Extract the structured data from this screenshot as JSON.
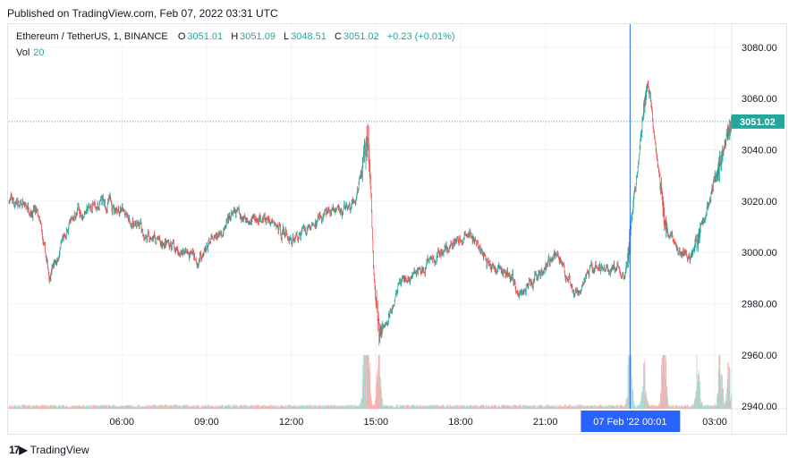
{
  "header": {
    "published": "Published on TradingView.com, Feb 07, 2022 03:31 UTC"
  },
  "legend": {
    "symbol": "Ethereum / TetherUS, 1, BINANCE",
    "open_label": "O",
    "open": "3051.01",
    "high_label": "H",
    "high": "3051.09",
    "low_label": "L",
    "low": "3048.51",
    "close_label": "C",
    "close": "3051.02",
    "change": "+0.23 (+0.01%)",
    "vol_label": "Vol",
    "vol_value": "20"
  },
  "footer": {
    "brand": "TradingView"
  },
  "colors": {
    "up": "#26a69a",
    "down": "#ef5350",
    "crosshair": "#2962ff",
    "price_tag": "#26a69a"
  },
  "chart_data": {
    "type": "candlestick",
    "x_tick_labels": [
      "06:00",
      "09:00",
      "12:00",
      "15:00",
      "18:00",
      "21:00",
      "03:00"
    ],
    "x_tick_hours": [
      6,
      9,
      12,
      15,
      18,
      21,
      27
    ],
    "x_range_hours": [
      2.0,
      27.6
    ],
    "y_ticks": [
      "3080.00",
      "3060.00",
      "3040.00",
      "3020.00",
      "3000.00",
      "2980.00",
      "2960.00",
      "2940.00"
    ],
    "y_tick_values": [
      3080,
      3060,
      3040,
      3020,
      3000,
      2980,
      2960,
      2940
    ],
    "ylim": [
      2939,
      3089
    ],
    "last_price": 3051.02,
    "last_price_label": "3051.02",
    "crosshair_hour": 24.0,
    "crosshair_label": "07 Feb '22   00:01",
    "price_path": [
      [
        2.0,
        3020
      ],
      [
        3.0,
        3015
      ],
      [
        3.4,
        2990
      ],
      [
        4.3,
        3015
      ],
      [
        5.5,
        3020
      ],
      [
        7.0,
        3005
      ],
      [
        8.7,
        2998
      ],
      [
        10.0,
        3015
      ],
      [
        11.2,
        3012
      ],
      [
        12.0,
        3005
      ],
      [
        13.0,
        3014
      ],
      [
        14.2,
        3018
      ],
      [
        14.7,
        3045
      ],
      [
        14.9,
        2990
      ],
      [
        15.1,
        2965
      ],
      [
        15.8,
        2988
      ],
      [
        16.2,
        2990
      ],
      [
        17.5,
        3002
      ],
      [
        18.3,
        3007
      ],
      [
        19.0,
        2995
      ],
      [
        19.8,
        2990
      ],
      [
        20.0,
        2983
      ],
      [
        21.4,
        3000
      ],
      [
        22.0,
        2982
      ],
      [
        22.7,
        2995
      ],
      [
        23.5,
        2994
      ],
      [
        23.8,
        2988
      ],
      [
        24.3,
        3040
      ],
      [
        24.6,
        3070
      ],
      [
        25.2,
        3010
      ],
      [
        25.7,
        3000
      ],
      [
        26.2,
        2998
      ],
      [
        26.8,
        3022
      ],
      [
        27.3,
        3040
      ],
      [
        27.6,
        3051
      ]
    ],
    "volume_spikes": [
      [
        14.6,
        28
      ],
      [
        14.7,
        40
      ],
      [
        15.1,
        22
      ],
      [
        24.0,
        28
      ],
      [
        24.5,
        15
      ],
      [
        25.2,
        35
      ],
      [
        26.4,
        18
      ],
      [
        27.2,
        22
      ],
      [
        27.5,
        12
      ]
    ]
  }
}
